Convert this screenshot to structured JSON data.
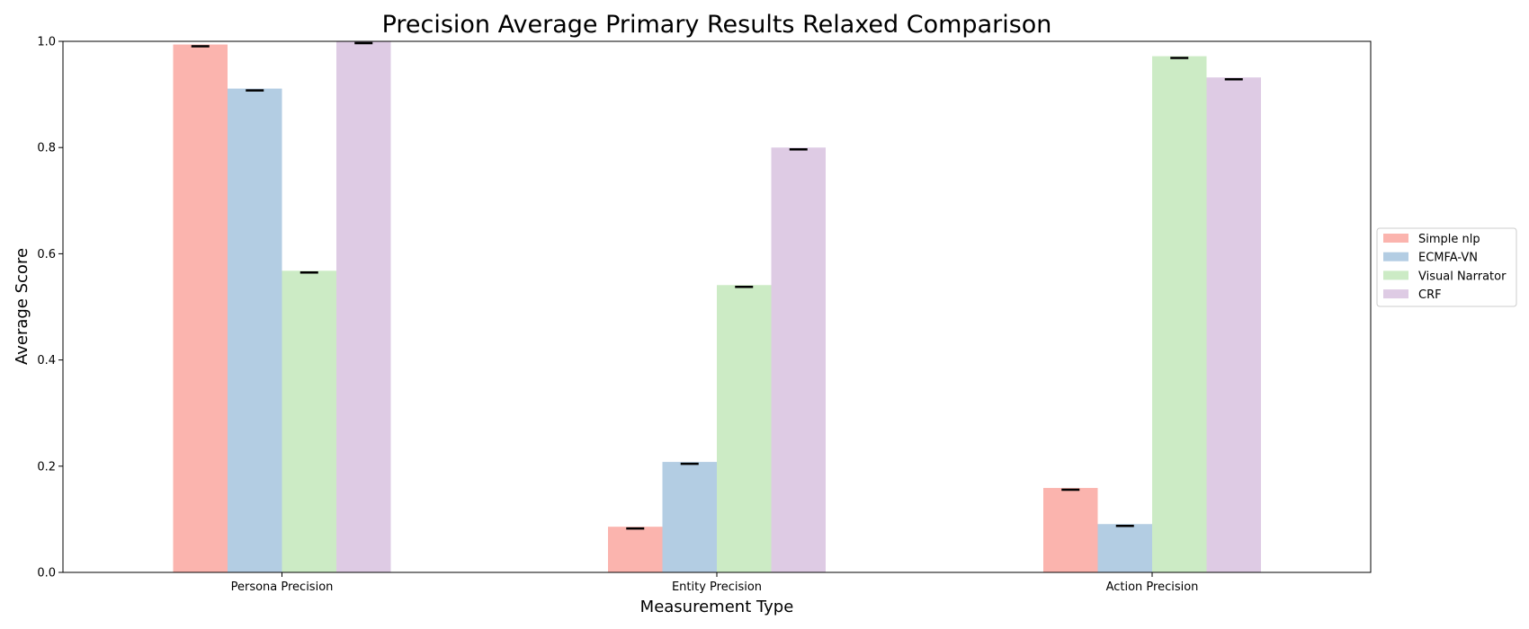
{
  "chart_data": {
    "type": "bar",
    "title": "Precision Average Primary Results Relaxed Comparison",
    "xlabel": "Measurement Type",
    "ylabel": "Average Score",
    "categories": [
      "Persona Precision",
      "Entity Precision",
      "Action Precision"
    ],
    "series": [
      {
        "name": "Simple nlp",
        "color": "#fbb4ae",
        "values": [
          0.994,
          0.086,
          0.159
        ]
      },
      {
        "name": "ECMFA-VN",
        "color": "#b3cde3",
        "values": [
          0.911,
          0.208,
          0.091
        ]
      },
      {
        "name": "Visual Narrator",
        "color": "#ccebc5",
        "values": [
          0.568,
          0.541,
          0.972
        ]
      },
      {
        "name": "CRF",
        "color": "#decbe4",
        "values": [
          1.0,
          0.8,
          0.932
        ]
      }
    ],
    "ylim": [
      0,
      1.0
    ],
    "yticks": [
      "0.0",
      "0.2",
      "0.4",
      "0.6",
      "0.8",
      "1.0"
    ],
    "error_bars": true,
    "grid": false,
    "legend_position": "right"
  }
}
